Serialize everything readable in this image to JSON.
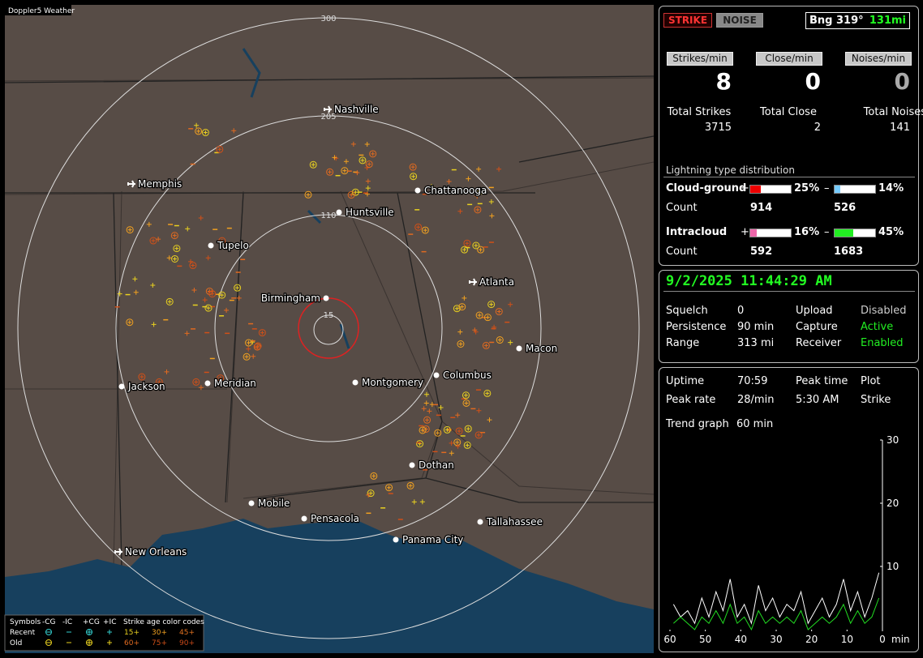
{
  "map": {
    "title": "Doppler5 Weather",
    "range_rings": [
      "300",
      "205",
      "110",
      "15"
    ],
    "cities": [
      "Nashville",
      "Memphis",
      "Chattanooga",
      "Huntsville",
      "Tupelo",
      "Atlanta",
      "Birmingham",
      "Macon",
      "Jackson",
      "Meridian",
      "Montgomery",
      "Columbus",
      "Dothan",
      "Mobile",
      "Pensacola",
      "Tallahassee",
      "Panama City",
      "New Orleans"
    ]
  },
  "legend": {
    "symbols_label": "Symbols",
    "symbol_headers": [
      "-CG",
      "-IC",
      "+CG",
      "+IC"
    ],
    "rows": [
      "Recent",
      "Old"
    ],
    "age_title": "Strike age color codes",
    "age_codes": [
      [
        "15+",
        "30+",
        "45+"
      ],
      [
        "60+",
        "75+",
        "90+"
      ]
    ]
  },
  "mode_buttons": [
    "STRIKE",
    "NOISE"
  ],
  "bearing": {
    "label": "Bng 319°",
    "distance": "131mi"
  },
  "rates": [
    {
      "label": "Strikes/min",
      "value": 8
    },
    {
      "label": "Close/min",
      "value": 0
    },
    {
      "label": "Noises/min",
      "value": 0
    }
  ],
  "totals": [
    {
      "label": "Total Strikes",
      "value": 3715
    },
    {
      "label": "Total Close",
      "value": 2
    },
    {
      "label": "Total Noises",
      "value": 141
    }
  ],
  "distribution": {
    "title": "Lightning type distribution",
    "plus_sign": "+",
    "minus_sign": "–",
    "count_label": "Count",
    "rows": [
      {
        "name": "Cloud-ground",
        "plus": {
          "value": 25,
          "label": "25%"
        },
        "minus": {
          "value": 14,
          "label": "14%"
        },
        "plus_count": 914,
        "minus_count": 526
      },
      {
        "name": "Intracloud",
        "plus": {
          "value": 16,
          "label": "16%"
        },
        "minus": {
          "value": 45,
          "label": "45%"
        },
        "plus_count": 592,
        "minus_count": 1683
      }
    ]
  },
  "status": {
    "datetime": "9/2/2025 11:44:29 AM",
    "rows": [
      [
        "Squelch",
        0,
        "Upload",
        "Disabled"
      ],
      [
        "Persistence",
        "90 min",
        "Capture",
        "Active"
      ],
      [
        "Range",
        "313 mi",
        "Receiver",
        "Enabled"
      ]
    ]
  },
  "stats": {
    "rows": [
      [
        "Uptime",
        "70:59",
        "Peak time",
        "Plot"
      ],
      [
        "Peak rate",
        "28/min",
        "5:30 AM",
        "Strike"
      ]
    ],
    "trend_label": "Trend graph",
    "trend_value": "60 min"
  },
  "trend": {
    "ylim": [
      0,
      30
    ],
    "yticks": [
      10,
      20,
      30
    ],
    "xlim": [
      60,
      0
    ],
    "xticks": [
      60,
      50,
      40,
      30,
      20,
      10,
      0
    ],
    "x_unit": "min",
    "x": [
      59,
      57,
      55,
      53,
      51,
      49,
      47,
      45,
      43,
      41,
      39,
      37,
      35,
      33,
      31,
      29,
      27,
      25,
      23,
      21,
      19,
      17,
      15,
      13,
      11,
      9,
      7,
      5,
      3,
      1
    ],
    "series": [
      {
        "color": "#ffffff",
        "values": [
          4,
          2,
          3,
          1,
          5,
          2,
          6,
          3,
          8,
          2,
          4,
          1,
          7,
          3,
          5,
          2,
          4,
          3,
          6,
          1,
          3,
          5,
          2,
          4,
          8,
          3,
          6,
          2,
          5,
          9
        ]
      },
      {
        "color": "#22dd22",
        "values": [
          1,
          2,
          1,
          0,
          2,
          1,
          3,
          1,
          4,
          1,
          2,
          0,
          3,
          1,
          2,
          1,
          2,
          1,
          3,
          0,
          1,
          2,
          1,
          2,
          4,
          1,
          3,
          1,
          2,
          5
        ]
      }
    ]
  }
}
